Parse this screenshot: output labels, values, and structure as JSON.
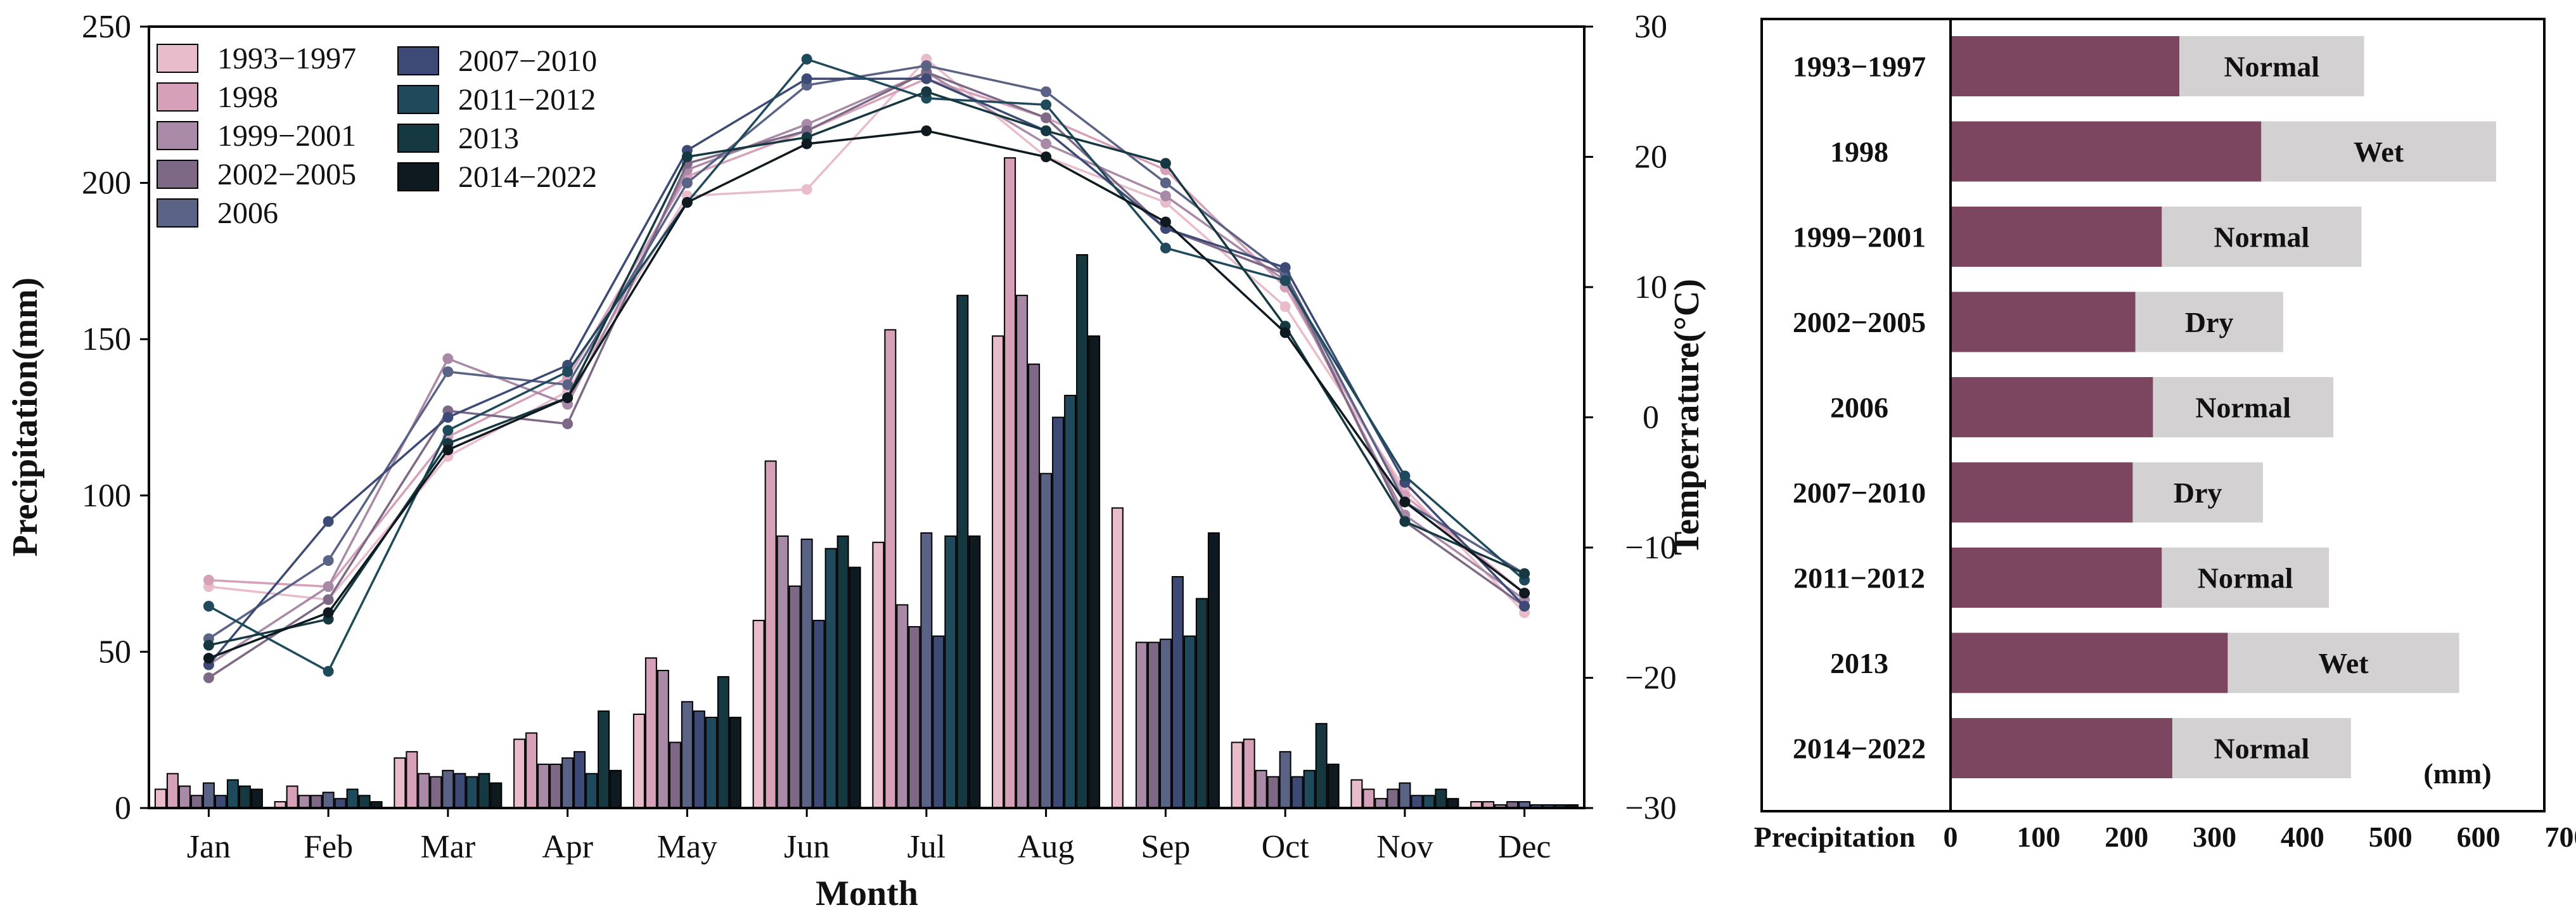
{
  "chart_data": [
    {
      "type": "bar+line",
      "title": "",
      "xlabel": "Month",
      "ylabel": "Precipitation(mm)",
      "y2label": "Temperrature(°C)",
      "ylim": [
        0,
        250
      ],
      "y2lim": [
        -30,
        30
      ],
      "yticks": [
        "0",
        "50",
        "100",
        "150",
        "200",
        "250"
      ],
      "y2ticks": [
        "−30",
        "−20",
        "−10",
        "0",
        "10",
        "20",
        "30"
      ],
      "categories": [
        "Jan",
        "Feb",
        "Mar",
        "Apr",
        "May",
        "Jun",
        "Jul",
        "Aug",
        "Sep",
        "Oct",
        "Nov",
        "Dec"
      ],
      "series": [
        {
          "name": "1993−1997",
          "color": "#e9bccb",
          "precip": [
            6,
            2,
            16,
            22,
            30,
            60,
            85,
            151,
            96,
            21,
            9,
            2
          ],
          "temp": [
            -13,
            -14,
            -3,
            2,
            17,
            17.5,
            27.5,
            20,
            16.5,
            8.5,
            -5.5,
            -15
          ]
        },
        {
          "name": "1998",
          "color": "#d5a0b8",
          "precip": [
            11,
            7,
            18,
            24,
            48,
            111,
            153,
            208,
            0,
            22,
            6,
            2
          ],
          "temp": [
            -12.5,
            -13,
            -1.5,
            3,
            18.5,
            22,
            26,
            23,
            19,
            10,
            -6,
            -13.5
          ]
        },
        {
          "name": "1999−2001",
          "color": "#a88aa6",
          "precip": [
            7,
            4,
            11,
            14,
            44,
            87,
            65,
            164,
            53,
            12,
            3,
            1
          ],
          "temp": [
            -19,
            -13,
            4.5,
            1,
            19,
            22.5,
            26.5,
            21,
            17,
            10.5,
            -7.5,
            -14
          ]
        },
        {
          "name": "2002−2005",
          "color": "#7d6985",
          "precip": [
            4,
            4,
            10,
            14,
            21,
            71,
            58,
            142,
            53,
            10,
            6,
            2
          ],
          "temp": [
            -20,
            -14,
            0.5,
            -0.5,
            19.5,
            22,
            26.5,
            23,
            14.5,
            11,
            -8,
            -14.5
          ]
        },
        {
          "name": "2006",
          "color": "#5a6286",
          "precip": [
            8,
            5,
            12,
            16,
            34,
            86,
            88,
            107,
            54,
            18,
            8,
            2
          ],
          "temp": [
            -17,
            -11,
            3.5,
            2.5,
            18,
            25.5,
            27,
            25,
            18,
            11,
            -6.5,
            -12
          ]
        },
        {
          "name": "2007−2010",
          "color": "#3d4a75",
          "precip": [
            4,
            3,
            11,
            18,
            31,
            60,
            55,
            125,
            74,
            10,
            4,
            1
          ],
          "temp": [
            -19,
            -8,
            0,
            4,
            20.5,
            26,
            26,
            22,
            14.5,
            11.5,
            -5,
            -14.5
          ]
        },
        {
          "name": "2011−2012",
          "color": "#1f4a5c",
          "precip": [
            9,
            6,
            10,
            11,
            29,
            83,
            87,
            132,
            55,
            12,
            4,
            1
          ],
          "temp": [
            -14.5,
            -19.5,
            -1,
            3.5,
            16.5,
            27.5,
            24.5,
            24,
            13,
            10.5,
            -4.5,
            -12.5
          ]
        },
        {
          "name": "2013",
          "color": "#163841",
          "precip": [
            7,
            4,
            11,
            31,
            42,
            87,
            164,
            177,
            67,
            27,
            6,
            1
          ],
          "temp": [
            -17.5,
            -15.5,
            -2,
            1.5,
            20,
            21.5,
            25,
            22,
            19.5,
            7,
            -8,
            -12
          ]
        },
        {
          "name": "2014−2022",
          "color": "#0e1a20",
          "precip": [
            6,
            2,
            8,
            12,
            29,
            77,
            87,
            151,
            88,
            14,
            3,
            1
          ],
          "temp": [
            -18.5,
            -15,
            -2.5,
            1.5,
            16.5,
            21,
            22,
            20,
            15,
            6.5,
            -6.5,
            -13.5
          ]
        }
      ]
    },
    {
      "type": "bar",
      "orientation": "horizontal",
      "stacked": true,
      "xlabel": "Precipitation",
      "unit_label": "(mm)",
      "xlim": [
        0,
        700
      ],
      "xticks": [
        "0",
        "100",
        "200",
        "300",
        "400",
        "500",
        "600",
        "700"
      ],
      "categories": [
        "1993−1997",
        "1998",
        "1999−2001",
        "2002−2005",
        "2006",
        "2007−2010",
        "2011−2012",
        "2013",
        "2014−2022"
      ],
      "series": [
        {
          "name": "base",
          "color": "#7c4660",
          "values": [
            260,
            353,
            240,
            210,
            230,
            207,
            240,
            315,
            252
          ]
        },
        {
          "name": "total",
          "color": "#d3d1d2",
          "values": [
            470,
            620,
            467,
            378,
            435,
            355,
            430,
            578,
            455
          ]
        }
      ],
      "labels": [
        "Normal",
        "Wet",
        "Normal",
        "Dry",
        "Normal",
        "Dry",
        "Normal",
        "Wet",
        "Normal"
      ]
    }
  ]
}
